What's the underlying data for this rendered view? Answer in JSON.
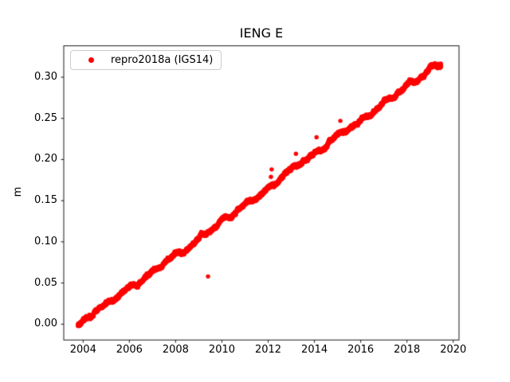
{
  "figure": {
    "background": "#ffffff",
    "spine_color": "#000000",
    "tick_color": "#000000"
  },
  "chart_data": {
    "type": "scatter",
    "title": "IENG E",
    "xlabel": "",
    "ylabel": "m",
    "grid": false,
    "xlim": [
      2003.163,
      2020.249
    ],
    "ylim": [
      -0.0192,
      0.3381
    ],
    "x_ticks": [
      2004,
      2006,
      2008,
      2010,
      2012,
      2014,
      2016,
      2018,
      2020
    ],
    "x_tick_labels": [
      "2004",
      "2006",
      "2008",
      "2010",
      "2012",
      "2014",
      "2016",
      "2018",
      "2020"
    ],
    "y_ticks": [
      0.0,
      0.05,
      0.1,
      0.15,
      0.2,
      0.25,
      0.3
    ],
    "y_tick_labels": [
      "0.00",
      "0.05",
      "0.10",
      "0.15",
      "0.20",
      "0.25",
      "0.30"
    ],
    "legend": {
      "location": "upper left",
      "entries": [
        {
          "label": "repro2018a (IGS14)",
          "color": "#ff0000",
          "marker": "circle"
        }
      ]
    },
    "series": [
      {
        "name": "repro2018a (IGS14)",
        "color": "#ff0000",
        "marker": "circle",
        "marker_radius_px": 2.7,
        "start_year": 2003.78,
        "end_year": 2019.47,
        "start_value_m": -0.001,
        "slope_m_per_year": 0.0204,
        "annual_amplitude_m": 0.0017,
        "semiannual_amplitude_m": 0.0007,
        "annual_phase_yr": 0.75,
        "random_walk_step_m": 0.00035,
        "random_walk_damping": 0.99,
        "noise_sigma_m": 0.0009,
        "points_per_year": 365,
        "end_value_m": 0.319,
        "outliers": [
          [
            2009.4,
            0.058
          ],
          [
            2012.12,
            0.179
          ],
          [
            2012.15,
            0.188
          ],
          [
            2013.2,
            0.207
          ],
          [
            2014.09,
            0.227
          ],
          [
            2015.12,
            0.247
          ]
        ]
      }
    ]
  }
}
